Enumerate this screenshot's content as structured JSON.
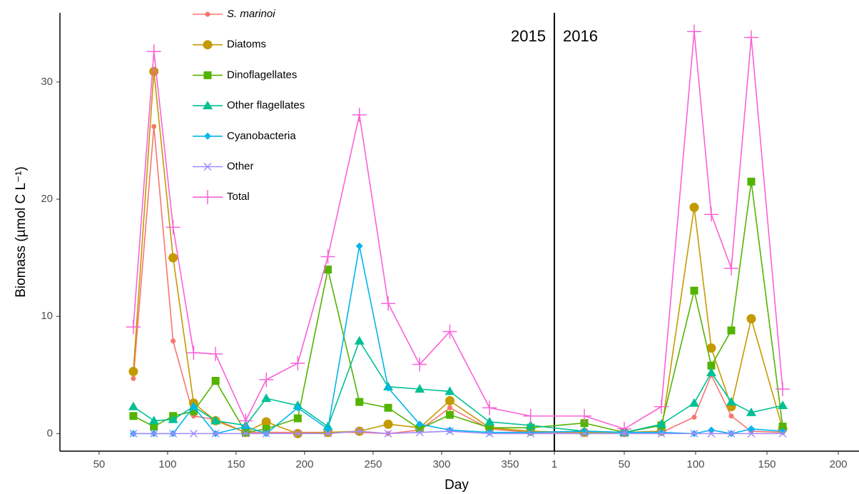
{
  "chart_data": [
    {
      "type": "line",
      "annotation": "2015",
      "x_label": "Day",
      "y_label": "Biomass (µmol C L⁻¹)",
      "ylim": [
        -1.5,
        35.9
      ],
      "yticks": [
        0,
        10,
        20,
        30
      ],
      "xlim": [
        21.4,
        382.3
      ],
      "xticks": [
        50,
        100,
        150,
        200,
        250,
        300,
        350
      ],
      "x": [
        75,
        90,
        104,
        119,
        135,
        157,
        172,
        195,
        217,
        240,
        261,
        284,
        306,
        335,
        365
      ],
      "series": [
        {
          "name": "S. marinoi",
          "color": "#F8766D",
          "marker": "small-circle",
          "values": [
            4.7,
            26.2,
            7.9,
            1.5,
            1.2,
            0.1,
            0.1,
            0.1,
            0.1,
            0.1,
            0.0,
            0.3,
            2.2,
            0.4,
            0.1
          ]
        },
        {
          "name": "Diatoms",
          "color": "#C49A00",
          "marker": "circle",
          "values": [
            5.3,
            30.9,
            15.0,
            2.6,
            1.1,
            0.1,
            1.0,
            0.0,
            0.1,
            0.2,
            0.8,
            0.5,
            2.8,
            0.5,
            0.2
          ]
        },
        {
          "name": "Dinoflagellates",
          "color": "#53B400",
          "marker": "square",
          "values": [
            1.5,
            0.6,
            1.5,
            1.9,
            4.5,
            0.1,
            0.4,
            1.3,
            14.0,
            2.7,
            2.2,
            0.4,
            1.6,
            0.5,
            0.5
          ]
        },
        {
          "name": "Other flagellates",
          "color": "#00C094",
          "marker": "triangle",
          "values": [
            2.3,
            1.1,
            1.2,
            2.3,
            1.1,
            0.7,
            3.0,
            2.4,
            0.6,
            7.9,
            4.0,
            3.8,
            3.6,
            1.0,
            0.7
          ]
        },
        {
          "name": "Cyanobacteria",
          "color": "#00B6EB",
          "marker": "diamond",
          "values": [
            0.0,
            0.0,
            0.0,
            2.3,
            0.0,
            0.6,
            0.0,
            2.2,
            0.4,
            16.0,
            3.9,
            0.8,
            0.3,
            0.1,
            0.1
          ]
        },
        {
          "name": "Other",
          "color": "#A58AFF",
          "marker": "cross",
          "values": [
            0,
            0,
            0,
            0,
            0,
            0,
            0,
            0,
            0,
            0.2,
            0,
            0.1,
            0.2,
            0,
            0
          ]
        },
        {
          "name": "Total",
          "color": "#FB61D7",
          "marker": "plus",
          "values": [
            9.1,
            32.6,
            17.6,
            6.9,
            6.8,
            1.1,
            4.6,
            6.0,
            15.1,
            27.2,
            11.1,
            5.9,
            8.7,
            2.2,
            1.5
          ]
        }
      ]
    },
    {
      "type": "line",
      "annotation": "2016",
      "xlim": [
        1,
        214.5
      ],
      "xticks": [
        1,
        50,
        100,
        150,
        200
      ],
      "x": [
        22,
        50,
        76,
        99,
        111,
        125,
        139,
        161
      ],
      "series": [
        {
          "values": [
            0.1,
            0.1,
            0.1,
            1.4,
            5.0,
            1.5,
            0.2,
            0.1
          ]
        },
        {
          "values": [
            0.1,
            0.1,
            0.2,
            19.3,
            7.3,
            2.3,
            9.8,
            0.4
          ]
        },
        {
          "values": [
            0.9,
            0.1,
            0.7,
            12.2,
            5.8,
            8.8,
            21.5,
            0.6
          ]
        },
        {
          "values": [
            0.2,
            0.1,
            0.8,
            2.6,
            5.2,
            2.7,
            1.8,
            2.4
          ]
        },
        {
          "values": [
            0.2,
            0.1,
            0.1,
            0.0,
            0.3,
            0.0,
            0.4,
            0.2
          ]
        },
        {
          "values": [
            0,
            0,
            0,
            0,
            0,
            0,
            0,
            0
          ]
        },
        {
          "values": [
            1.5,
            0.4,
            2.3,
            34.3,
            18.7,
            14.1,
            33.8,
            3.8
          ]
        }
      ]
    }
  ]
}
